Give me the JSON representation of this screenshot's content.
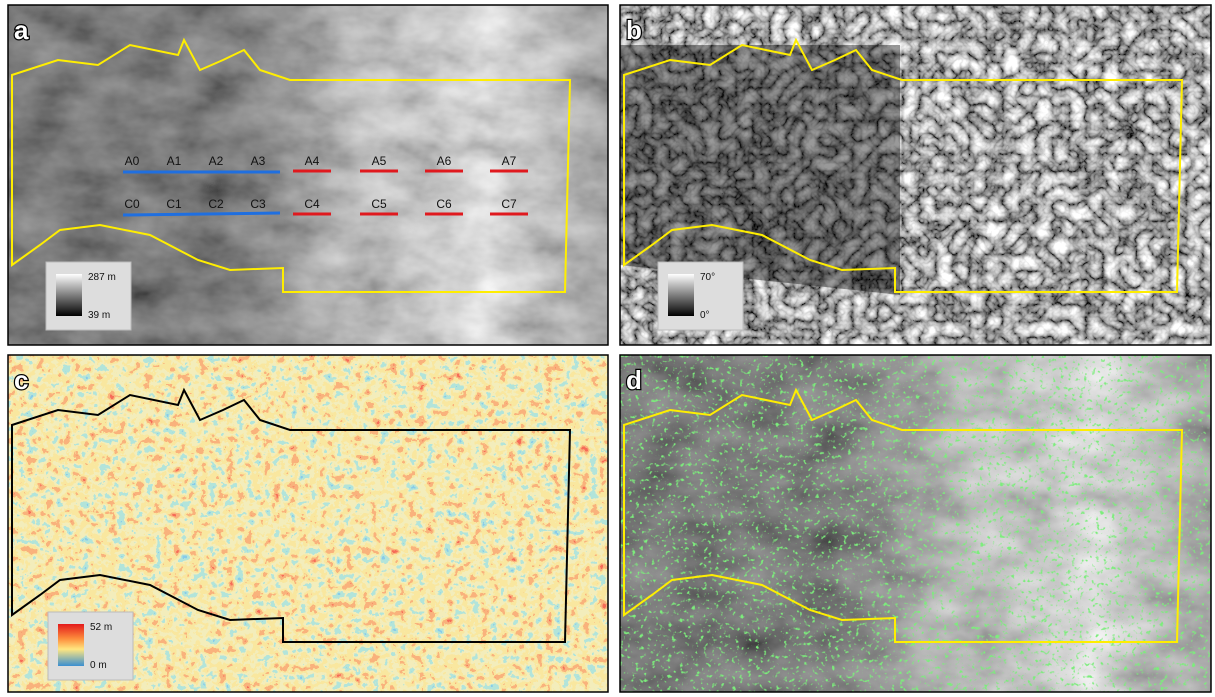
{
  "panels": [
    {
      "label": "a",
      "legend": [
        "287 m",
        "39 m"
      ]
    },
    {
      "label": "b",
      "legend": [
        "70°",
        "0°"
      ]
    },
    {
      "label": "c",
      "legend": [
        "52 m",
        "0 m"
      ]
    },
    {
      "label": "d"
    }
  ],
  "transects": {
    "A": [
      "A0",
      "A1",
      "A2",
      "A3",
      "A4",
      "A5",
      "A6",
      "A7"
    ],
    "C": [
      "C0",
      "C1",
      "C2",
      "C3",
      "C4",
      "C5",
      "C6",
      "C7"
    ]
  }
}
